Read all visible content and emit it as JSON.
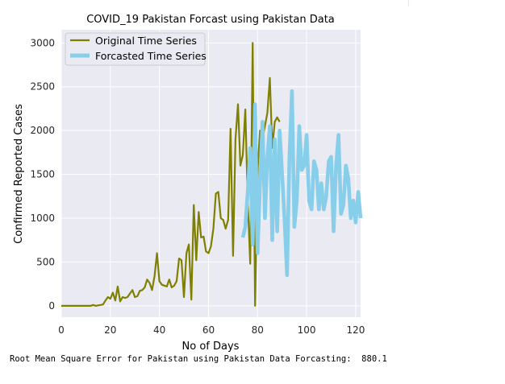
{
  "colors": {
    "plot_bg": "#eaeaf2",
    "original": "#808000",
    "forecast": "#87ceeb",
    "grid": "#ffffff",
    "text": "#262626"
  },
  "chart_data": {
    "type": "line",
    "title": "COVID_19 Pakistan Forcast using Pakistan Data",
    "xlabel": "No of Days",
    "ylabel": "Confirmed Reported Cases",
    "xlim": [
      0,
      122
    ],
    "ylim": [
      -130,
      3150
    ],
    "xticks": [
      0,
      20,
      40,
      60,
      80,
      100,
      120
    ],
    "yticks": [
      0,
      500,
      1000,
      1500,
      2000,
      2500,
      3000
    ],
    "grid": true,
    "legend": "top-left",
    "series": [
      {
        "name": "Original Time Series",
        "color": "#808000",
        "x": [
          0,
          1,
          2,
          3,
          4,
          5,
          6,
          7,
          8,
          9,
          10,
          11,
          12,
          13,
          14,
          15,
          16,
          17,
          18,
          19,
          20,
          21,
          22,
          23,
          24,
          25,
          26,
          27,
          28,
          29,
          30,
          31,
          32,
          33,
          34,
          35,
          36,
          37,
          38,
          39,
          40,
          41,
          42,
          43,
          44,
          45,
          46,
          47,
          48,
          49,
          50,
          51,
          52,
          53,
          54,
          55,
          56,
          57,
          58,
          59,
          60,
          61,
          62,
          63,
          64,
          65,
          66,
          67,
          68,
          69,
          70,
          71,
          72,
          73,
          74,
          75,
          76,
          77,
          78,
          79,
          80,
          81,
          82,
          83,
          84,
          85,
          86,
          87,
          88,
          89
        ],
        "y": [
          0,
          0,
          0,
          0,
          0,
          0,
          0,
          0,
          0,
          0,
          0,
          0,
          0,
          10,
          0,
          5,
          10,
          15,
          60,
          100,
          80,
          150,
          60,
          220,
          50,
          100,
          90,
          100,
          140,
          180,
          100,
          110,
          170,
          180,
          210,
          300,
          260,
          180,
          340,
          600,
          280,
          240,
          230,
          220,
          300,
          210,
          230,
          280,
          540,
          520,
          100,
          600,
          700,
          70,
          1150,
          520,
          1070,
          780,
          790,
          620,
          600,
          680,
          880,
          1280,
          1300,
          1000,
          980,
          880,
          980,
          2020,
          570,
          1900,
          2300,
          1600,
          1720,
          2240,
          1200,
          480,
          3000,
          0,
          1540,
          2000,
          1900,
          2050,
          2200,
          2600,
          1800,
          2100,
          2150,
          2100
        ]
      },
      {
        "name": "Forcasted Time Series",
        "color": "#87ceeb",
        "x": [
          74,
          75,
          76,
          77,
          78,
          79,
          80,
          81,
          82,
          83,
          84,
          85,
          86,
          87,
          88,
          89,
          90,
          91,
          92,
          93,
          94,
          95,
          96,
          97,
          98,
          99,
          100,
          101,
          102,
          103,
          104,
          105,
          106,
          107,
          108,
          109,
          110,
          111,
          112,
          113,
          114,
          115,
          116,
          117,
          118,
          119,
          120,
          121,
          122
        ],
        "y": [
          780,
          900,
          1300,
          1800,
          700,
          2300,
          600,
          1400,
          2100,
          1000,
          1700,
          2050,
          750,
          1900,
          850,
          2000,
          1500,
          1000,
          350,
          1700,
          2450,
          900,
          1200,
          2050,
          1550,
          1600,
          1950,
          1200,
          1100,
          1650,
          1550,
          1100,
          1400,
          1100,
          1250,
          1650,
          1700,
          850,
          1600,
          1950,
          1050,
          1150,
          1600,
          1450,
          1000,
          1200,
          950,
          1300,
          1000
        ]
      }
    ]
  },
  "output_text": "Root Mean Square Error for Pakistan using Pakistan Data Forcasting:  880.1"
}
